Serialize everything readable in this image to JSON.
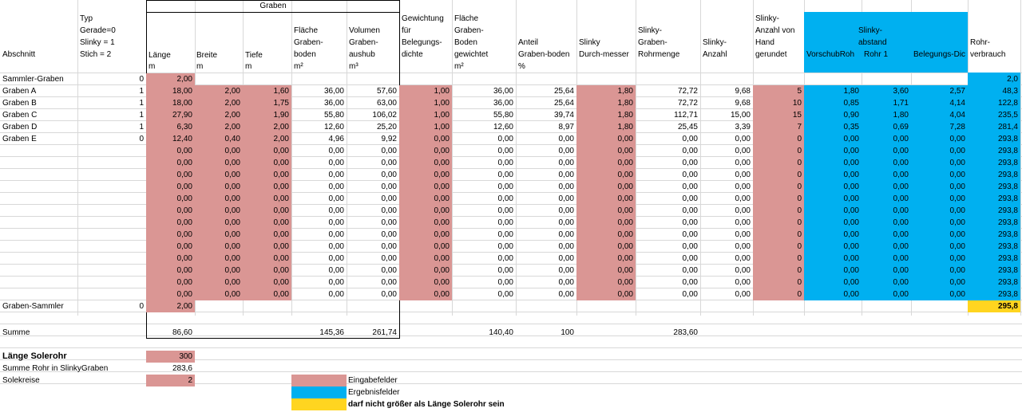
{
  "header": {
    "group_graben": "Graben",
    "abschnitt": "Abschnitt",
    "typ": [
      "Typ",
      "Gerade=0",
      "Slinky = 1",
      "Stich = 2"
    ],
    "laenge": "Länge",
    "breite": "Breite",
    "tiefe": "Tiefe",
    "flaeche": [
      "Fläche",
      "Graben-",
      "boden"
    ],
    "volumen": [
      "Volumen",
      "Graben-",
      "aushub"
    ],
    "gewichtung": [
      "Gewichtung",
      "für",
      "Belegungs-",
      "dichte"
    ],
    "flaeche_gew": [
      "Fläche",
      "Graben-",
      "Boden",
      "gewichtet"
    ],
    "anteil": "Anteil",
    "anteil2": "Graben-boden",
    "slinky_d": "Slinky",
    "slinky_d2": "Durch-messer",
    "rohrmenge": [
      "Slinky-",
      "Graben-",
      "Rohrmenge"
    ],
    "anzahl": [
      "Slinky-",
      "Anzahl"
    ],
    "anzahl_hand": [
      "Slinky-",
      "Anzahl von",
      "Hand",
      "gerundet"
    ],
    "abstand": [
      "Slinky-",
      "abstand"
    ],
    "vorschub": "VorschubRoh",
    "rohr1": "Rohr 1",
    "belegung": "Belegungs-Dic",
    "rohrverbrauch": [
      "Rohr-",
      "verbrauch"
    ]
  },
  "units": {
    "laenge": "m",
    "breite": "m",
    "tiefe": "m",
    "flaeche": "m²",
    "volumen": "m³",
    "flaeche_gew": "m²",
    "anteil": "%"
  },
  "rows": [
    [
      "Sammler-Graben",
      "0",
      "2,00",
      "",
      "",
      "",
      "",
      "",
      "",
      "",
      "",
      "",
      "",
      "",
      "",
      "",
      "",
      "2,0"
    ],
    [
      "Graben A",
      "1",
      "18,00",
      "2,00",
      "1,60",
      "36,00",
      "57,60",
      "1,00",
      "36,00",
      "25,64",
      "1,80",
      "72,72",
      "9,68",
      "5",
      "1,80",
      "3,60",
      "2,57",
      "48,3"
    ],
    [
      "Graben B",
      "1",
      "18,00",
      "2,00",
      "1,75",
      "36,00",
      "63,00",
      "1,00",
      "36,00",
      "25,64",
      "1,80",
      "72,72",
      "9,68",
      "10",
      "0,85",
      "1,71",
      "4,14",
      "122,8"
    ],
    [
      "Graben C",
      "1",
      "27,90",
      "2,00",
      "1,90",
      "55,80",
      "106,02",
      "1,00",
      "55,80",
      "39,74",
      "1,80",
      "112,71",
      "15,00",
      "15",
      "0,90",
      "1,80",
      "4,04",
      "235,5"
    ],
    [
      "Graben D",
      "1",
      "6,30",
      "2,00",
      "2,00",
      "12,60",
      "25,20",
      "1,00",
      "12,60",
      "8,97",
      "1,80",
      "25,45",
      "3,39",
      "7",
      "0,35",
      "0,69",
      "7,28",
      "281,4"
    ],
    [
      "Graben E",
      "0",
      "12,40",
      "0,40",
      "2,00",
      "4,96",
      "9,92",
      "0,00",
      "0,00",
      "0,00",
      "0,00",
      "0,00",
      "0,00",
      "0",
      "0,00",
      "0,00",
      "0,00",
      "293,8"
    ],
    [
      "",
      "",
      "0,00",
      "0,00",
      "0,00",
      "0,00",
      "0,00",
      "0,00",
      "0,00",
      "0,00",
      "0,00",
      "0,00",
      "0,00",
      "0",
      "0,00",
      "0,00",
      "0,00",
      "293,8"
    ],
    [
      "",
      "",
      "0,00",
      "0,00",
      "0,00",
      "0,00",
      "0,00",
      "0,00",
      "0,00",
      "0,00",
      "0,00",
      "0,00",
      "0,00",
      "0",
      "0,00",
      "0,00",
      "0,00",
      "293,8"
    ],
    [
      "",
      "",
      "0,00",
      "0,00",
      "0,00",
      "0,00",
      "0,00",
      "0,00",
      "0,00",
      "0,00",
      "0,00",
      "0,00",
      "0,00",
      "0",
      "0,00",
      "0,00",
      "0,00",
      "293,8"
    ],
    [
      "",
      "",
      "0,00",
      "0,00",
      "0,00",
      "0,00",
      "0,00",
      "0,00",
      "0,00",
      "0,00",
      "0,00",
      "0,00",
      "0,00",
      "0",
      "0,00",
      "0,00",
      "0,00",
      "293,8"
    ],
    [
      "",
      "",
      "0,00",
      "0,00",
      "0,00",
      "0,00",
      "0,00",
      "0,00",
      "0,00",
      "0,00",
      "0,00",
      "0,00",
      "0,00",
      "0",
      "0,00",
      "0,00",
      "0,00",
      "293,8"
    ],
    [
      "",
      "",
      "0,00",
      "0,00",
      "0,00",
      "0,00",
      "0,00",
      "0,00",
      "0,00",
      "0,00",
      "0,00",
      "0,00",
      "0,00",
      "0",
      "0,00",
      "0,00",
      "0,00",
      "293,8"
    ],
    [
      "",
      "",
      "0,00",
      "0,00",
      "0,00",
      "0,00",
      "0,00",
      "0,00",
      "0,00",
      "0,00",
      "0,00",
      "0,00",
      "0,00",
      "0",
      "0,00",
      "0,00",
      "0,00",
      "293,8"
    ],
    [
      "",
      "",
      "0,00",
      "0,00",
      "0,00",
      "0,00",
      "0,00",
      "0,00",
      "0,00",
      "0,00",
      "0,00",
      "0,00",
      "0,00",
      "0",
      "0,00",
      "0,00",
      "0,00",
      "293,8"
    ],
    [
      "",
      "",
      "0,00",
      "0,00",
      "0,00",
      "0,00",
      "0,00",
      "0,00",
      "0,00",
      "0,00",
      "0,00",
      "0,00",
      "0,00",
      "0",
      "0,00",
      "0,00",
      "0,00",
      "293,8"
    ],
    [
      "",
      "",
      "0,00",
      "0,00",
      "0,00",
      "0,00",
      "0,00",
      "0,00",
      "0,00",
      "0,00",
      "0,00",
      "0,00",
      "0,00",
      "0",
      "0,00",
      "0,00",
      "0,00",
      "293,8"
    ],
    [
      "",
      "",
      "0,00",
      "0,00",
      "0,00",
      "0,00",
      "0,00",
      "0,00",
      "0,00",
      "0,00",
      "0,00",
      "0,00",
      "0,00",
      "0",
      "0,00",
      "0,00",
      "0,00",
      "293,8"
    ],
    [
      "",
      "",
      "0,00",
      "0,00",
      "0,00",
      "0,00",
      "0,00",
      "0,00",
      "0,00",
      "0,00",
      "0,00",
      "0,00",
      "0,00",
      "0",
      "0,00",
      "0,00",
      "0,00",
      "293,8"
    ],
    [
      "",
      "",
      "0,00",
      "0,00",
      "0,00",
      "0,00",
      "0,00",
      "0,00",
      "0,00",
      "0,00",
      "0,00",
      "0,00",
      "0,00",
      "0",
      "0,00",
      "0,00",
      "0,00",
      "293,8"
    ],
    [
      "Graben-Sammler",
      "0",
      "2,00",
      "",
      "",
      "",
      "",
      "",
      "",
      "",
      "",
      "",
      "",
      "",
      "",
      "",
      "",
      "295,8"
    ]
  ],
  "summe": {
    "label": "Summe",
    "laenge": "86,60",
    "flaeche": "145,36",
    "volumen": "261,74",
    "flaeche_gew": "140,40",
    "anteil": "100",
    "rohrmenge": "283,60"
  },
  "bottom": {
    "laenge_solerohr_label": "Länge Solerohr",
    "laenge_solerohr": "300",
    "summe_rohr_label": "Summe Rohr in SlinkyGraben",
    "summe_rohr": "283,6",
    "solekreise_label": "Solekreise",
    "solekreise": "2"
  },
  "legend": {
    "eingabe": "Eingabefelder",
    "ergebnis": "Ergebnisfelder",
    "warnung": "darf nicht größer als Länge Solerohr sein"
  },
  "colors": {
    "input": "#da9694",
    "result": "#00b0f0",
    "warning": "#ffd520",
    "grid": "#d8d8d8"
  }
}
